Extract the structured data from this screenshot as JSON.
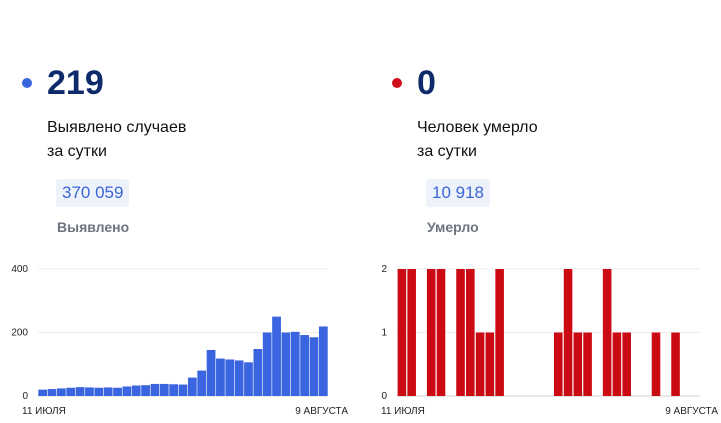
{
  "cards": [
    {
      "color": "#3b65e0",
      "value": "219",
      "description": [
        "Выявлено случаев",
        "за сутки"
      ],
      "total_value": "370 059",
      "total_label": "Выявлено"
    },
    {
      "color": "#d0101b",
      "value": "0",
      "description": [
        "Человек умерло",
        "за сутки"
      ],
      "total_value": "10 918",
      "total_label": "Умерло"
    }
  ],
  "chart_data": [
    {
      "type": "bar",
      "color": "#3b65e0",
      "ylim": [
        0,
        400
      ],
      "yticks": [
        "0",
        "200",
        "400"
      ],
      "x_start_label": "11 ИЮЛЯ",
      "x_end_label": "9 АВГУСТА",
      "values": [
        20,
        22,
        24,
        26,
        28,
        27,
        26,
        27,
        26,
        30,
        33,
        34,
        38,
        38,
        37,
        36,
        58,
        80,
        145,
        118,
        115,
        112,
        106,
        148,
        200,
        250,
        200,
        202,
        192,
        185,
        219
      ]
    },
    {
      "type": "bar",
      "color": "#cc0a14",
      "ylim": [
        0,
        2
      ],
      "yticks": [
        "0",
        "1",
        "2"
      ],
      "x_start_label": "11 ИЮЛЯ",
      "x_end_label": "9 АВГУСТА",
      "values": [
        2,
        2,
        0,
        2,
        2,
        0,
        2,
        2,
        1,
        1,
        2,
        0,
        0,
        0,
        0,
        0,
        1,
        2,
        1,
        1,
        0,
        2,
        1,
        1,
        0,
        0,
        1,
        0,
        1,
        0,
        0
      ]
    }
  ]
}
